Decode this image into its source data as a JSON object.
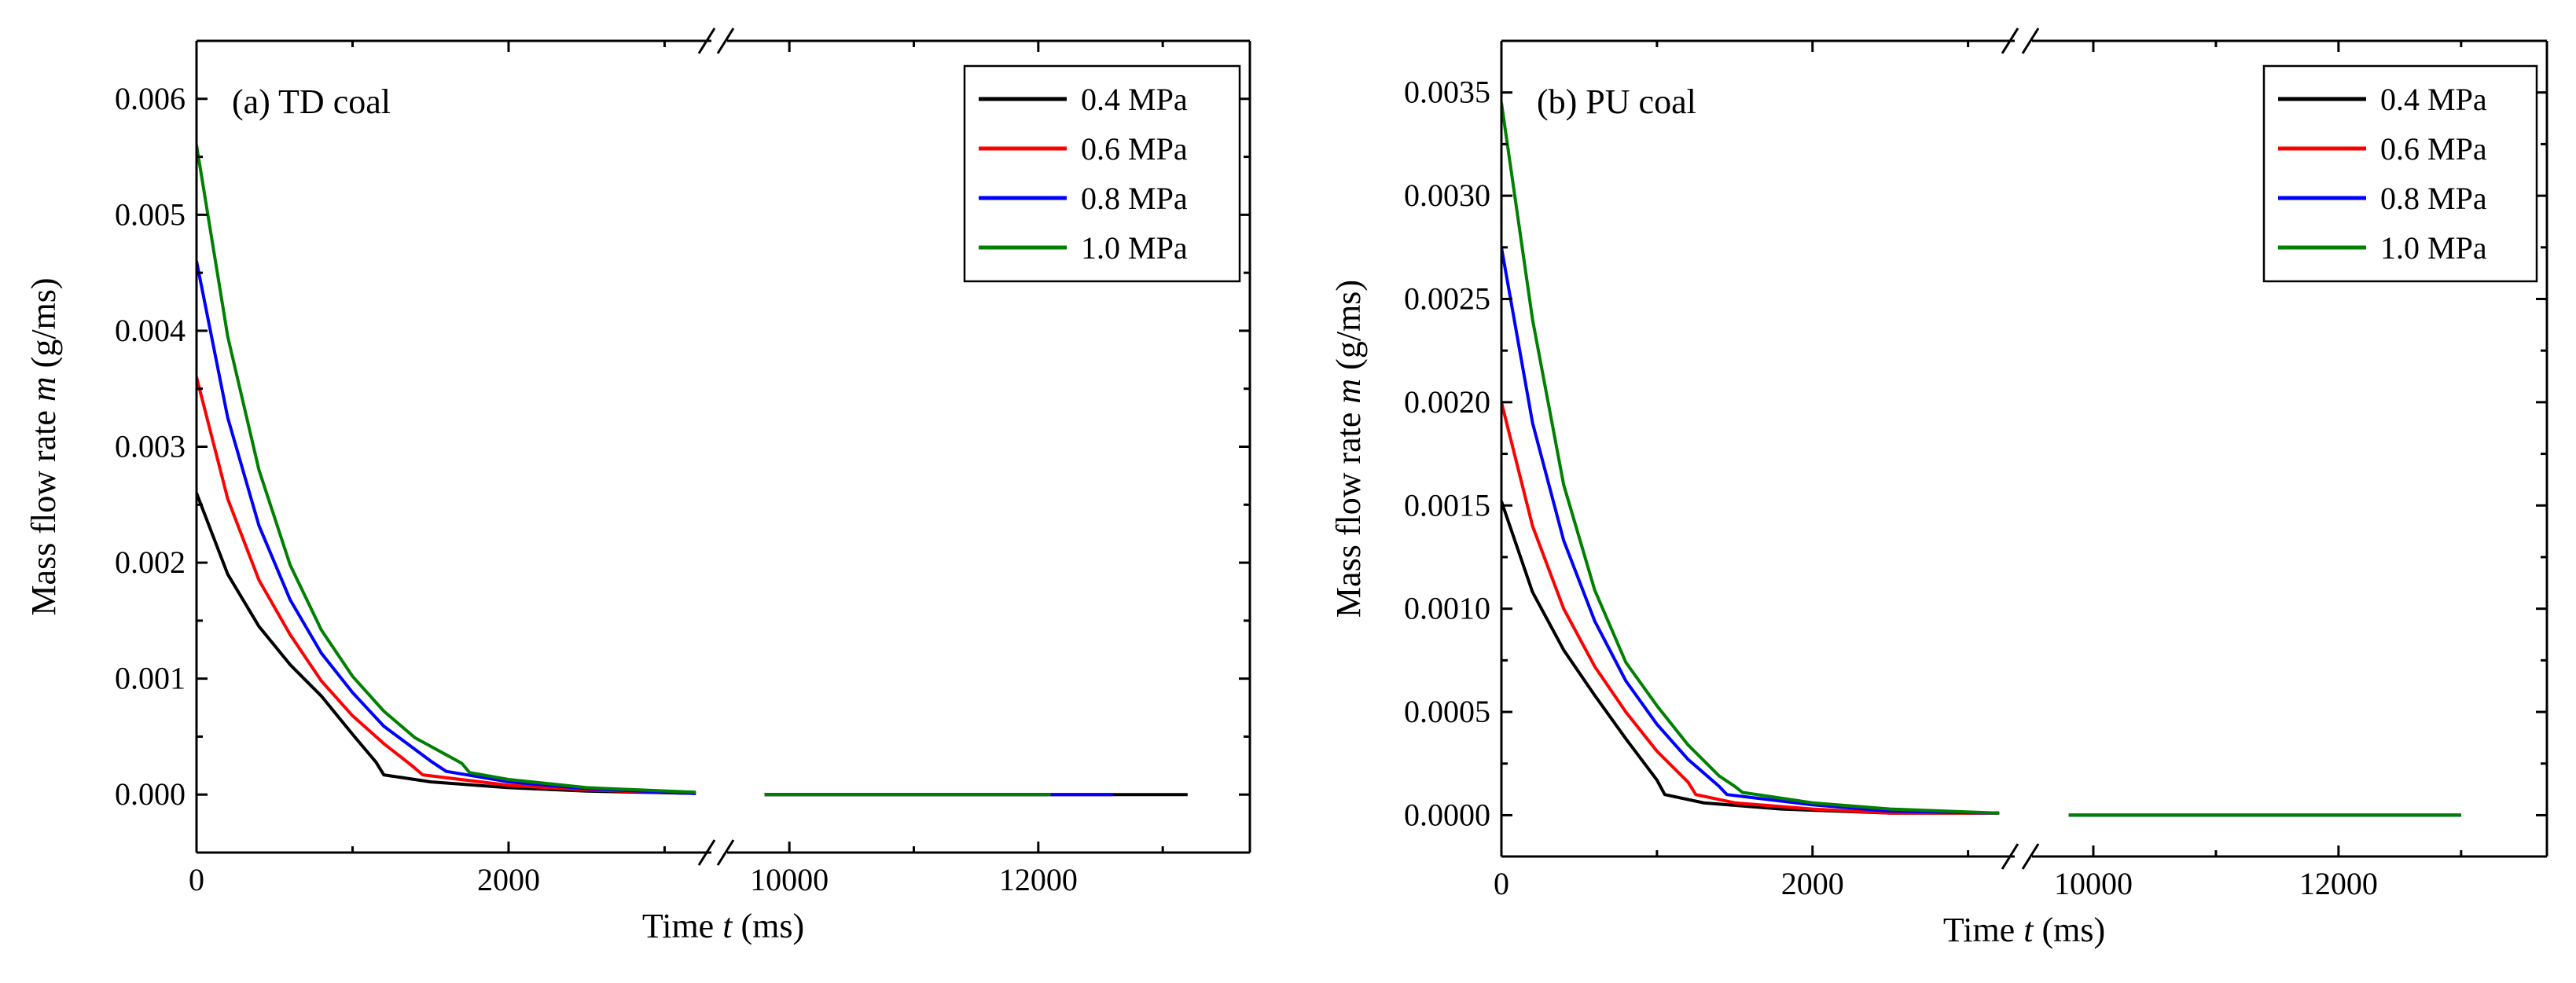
{
  "chart_data": [
    {
      "type": "line",
      "panel_label": "(a) TD coal",
      "xlabel": {
        "prefix": "Time ",
        "italic": "t",
        "suffix": " (ms)"
      },
      "ylabel": {
        "prefix": "Mass flow rate ",
        "italic": "m",
        "suffix": " (g/ms)"
      },
      "x_segments": [
        {
          "range": [
            0,
            3300
          ]
        },
        {
          "range": [
            9500,
            13700
          ]
        }
      ],
      "x_ticks": [
        {
          "value": 0,
          "label": "0"
        },
        {
          "value": 2000,
          "label": "2000"
        },
        {
          "value": 10000,
          "label": "10000"
        },
        {
          "value": 12000,
          "label": "12000"
        }
      ],
      "ylim": [
        -0.0005,
        0.0065
      ],
      "y_ticks": [
        {
          "value": 0.0,
          "label": "0.000"
        },
        {
          "value": 0.001,
          "label": "0.001"
        },
        {
          "value": 0.002,
          "label": "0.002"
        },
        {
          "value": 0.003,
          "label": "0.003"
        },
        {
          "value": 0.004,
          "label": "0.004"
        },
        {
          "value": 0.005,
          "label": "0.005"
        },
        {
          "value": 0.006,
          "label": "0.006"
        }
      ],
      "legend_position": "top-right",
      "series": [
        {
          "name": "0.4 MPa",
          "color": "#000000",
          "x": [
            0,
            200,
            400,
            600,
            800,
            1000,
            1150,
            1200,
            1500,
            2000,
            2500,
            3200
          ],
          "y": [
            0.0026,
            0.0019,
            0.00145,
            0.00112,
            0.00085,
            0.00052,
            0.00028,
            0.00017,
            0.00011,
            6e-05,
            3e-05,
            1e-05
          ],
          "x2": [
            9800,
            13200
          ],
          "y2": [
            0.0,
            0.0
          ]
        },
        {
          "name": "0.6 MPa",
          "color": "#ff0000",
          "x": [
            0,
            200,
            400,
            600,
            800,
            1000,
            1200,
            1380,
            1450,
            2000,
            2500,
            3200
          ],
          "y": [
            0.0036,
            0.00255,
            0.00185,
            0.00138,
            0.00098,
            0.00068,
            0.00044,
            0.00025,
            0.00017,
            8e-05,
            4e-05,
            1e-05
          ],
          "x2": [
            9800,
            12600
          ],
          "y2": [
            0.0,
            0.0
          ]
        },
        {
          "name": "0.8 MPa",
          "color": "#0000ff",
          "x": [
            0,
            200,
            400,
            600,
            800,
            1000,
            1200,
            1500,
            1600,
            2000,
            2500,
            3200
          ],
          "y": [
            0.0046,
            0.00325,
            0.00232,
            0.00168,
            0.00122,
            0.00088,
            0.00059,
            0.00029,
            0.0002,
            0.00011,
            5e-05,
            1e-05
          ],
          "x2": [
            9800,
            12600
          ],
          "y2": [
            0.0,
            0.0
          ]
        },
        {
          "name": "1.0 MPa",
          "color": "#008000",
          "x": [
            0,
            200,
            400,
            600,
            800,
            1000,
            1200,
            1400,
            1700,
            1750,
            2000,
            2500,
            3200
          ],
          "y": [
            0.0056,
            0.00395,
            0.0028,
            0.00198,
            0.00142,
            0.00102,
            0.00072,
            0.00049,
            0.00027,
            0.00019,
            0.00013,
            6e-05,
            2e-05
          ],
          "x2": [
            9800,
            12100
          ],
          "y2": [
            0.0,
            0.0
          ]
        }
      ]
    },
    {
      "type": "line",
      "panel_label": "(b) PU coal",
      "xlabel": {
        "prefix": "Time ",
        "italic": "t",
        "suffix": " (ms)"
      },
      "ylabel": {
        "prefix": "Mass flow rate ",
        "italic": "m",
        "suffix": " (g/ms)"
      },
      "x_segments": [
        {
          "range": [
            0,
            3300
          ]
        },
        {
          "range": [
            9500,
            13700
          ]
        }
      ],
      "x_ticks": [
        {
          "value": 0,
          "label": "0"
        },
        {
          "value": 2000,
          "label": "2000"
        },
        {
          "value": 10000,
          "label": "10000"
        },
        {
          "value": 12000,
          "label": "12000"
        }
      ],
      "ylim": [
        -0.0002,
        0.00375
      ],
      "y_ticks": [
        {
          "value": 0.0,
          "label": "0.0000"
        },
        {
          "value": 0.0005,
          "label": "0.0005"
        },
        {
          "value": 0.001,
          "label": "0.0010"
        },
        {
          "value": 0.0015,
          "label": "0.0015"
        },
        {
          "value": 0.002,
          "label": "0.0020"
        },
        {
          "value": 0.0025,
          "label": "0.0025"
        },
        {
          "value": 0.003,
          "label": "0.0030"
        },
        {
          "value": 0.0035,
          "label": "0.0035"
        }
      ],
      "legend_position": "top-right",
      "series": [
        {
          "name": "0.4 MPa",
          "color": "#000000",
          "x": [
            0,
            200,
            400,
            600,
            800,
            1000,
            1050,
            1300,
            1800,
            2500,
            3200
          ],
          "y": [
            0.00152,
            0.00108,
            0.0008,
            0.00058,
            0.00037,
            0.00017,
            0.0001,
            6e-05,
            3e-05,
            1e-05,
            1e-05
          ],
          "x2": [
            9800,
            13000
          ],
          "y2": [
            0.0,
            0.0
          ]
        },
        {
          "name": "0.6 MPa",
          "color": "#ff0000",
          "x": [
            0,
            200,
            400,
            600,
            800,
            1000,
            1200,
            1250,
            1500,
            2000,
            2500,
            3200
          ],
          "y": [
            0.002,
            0.0014,
            0.001,
            0.00072,
            0.0005,
            0.00031,
            0.00016,
            0.0001,
            6e-05,
            3e-05,
            1e-05,
            1e-05
          ],
          "x2": [
            9800,
            13000
          ],
          "y2": [
            0.0,
            0.0
          ]
        },
        {
          "name": "0.8 MPa",
          "color": "#0000ff",
          "x": [
            0,
            200,
            400,
            600,
            800,
            1000,
            1200,
            1400,
            1450,
            2000,
            2500,
            3200
          ],
          "y": [
            0.00275,
            0.0019,
            0.00133,
            0.00094,
            0.00065,
            0.00044,
            0.00027,
            0.00014,
            0.0001,
            5e-05,
            2e-05,
            1e-05
          ],
          "x2": [
            9800,
            13000
          ],
          "y2": [
            0.0,
            0.0
          ]
        },
        {
          "name": "1.0 MPa",
          "color": "#008000",
          "x": [
            0,
            200,
            400,
            600,
            800,
            1000,
            1200,
            1400,
            1500,
            1550,
            2000,
            2500,
            3200
          ],
          "y": [
            0.00345,
            0.0024,
            0.0016,
            0.00109,
            0.00074,
            0.00053,
            0.00034,
            0.00019,
            0.00014,
            0.00011,
            6e-05,
            3e-05,
            1e-05
          ],
          "x2": [
            9800,
            13000
          ],
          "y2": [
            0.0,
            0.0
          ]
        }
      ]
    }
  ]
}
